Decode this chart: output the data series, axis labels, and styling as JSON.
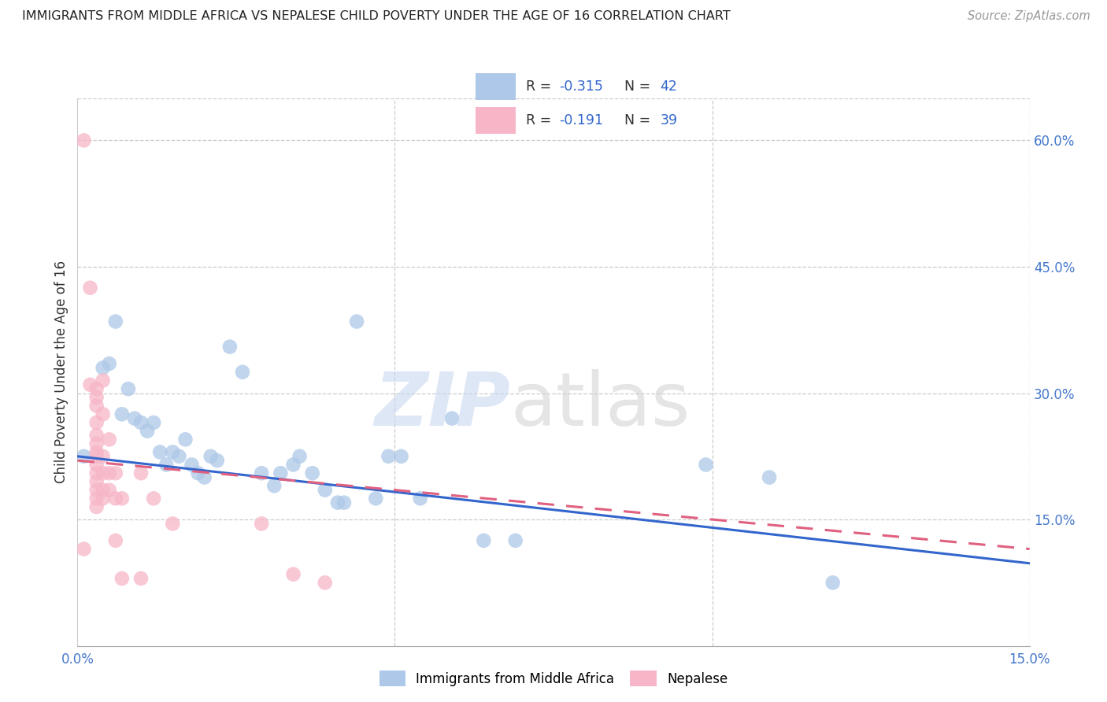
{
  "title": "IMMIGRANTS FROM MIDDLE AFRICA VS NEPALESE CHILD POVERTY UNDER THE AGE OF 16 CORRELATION CHART",
  "source": "Source: ZipAtlas.com",
  "ylabel": "Child Poverty Under the Age of 16",
  "xlim": [
    0.0,
    0.15
  ],
  "ylim": [
    0.0,
    0.65
  ],
  "blue_R": "-0.315",
  "blue_N": "42",
  "pink_R": "-0.191",
  "pink_N": "39",
  "blue_color": "#adc8e8",
  "pink_color": "#f7b6c8",
  "blue_line_color": "#3366cc",
  "pink_line_color": "#e06080",
  "blue_scatter": [
    [
      0.001,
      0.225
    ],
    [
      0.004,
      0.33
    ],
    [
      0.005,
      0.335
    ],
    [
      0.006,
      0.385
    ],
    [
      0.007,
      0.275
    ],
    [
      0.008,
      0.305
    ],
    [
      0.009,
      0.27
    ],
    [
      0.01,
      0.265
    ],
    [
      0.011,
      0.255
    ],
    [
      0.012,
      0.265
    ],
    [
      0.013,
      0.23
    ],
    [
      0.014,
      0.215
    ],
    [
      0.015,
      0.23
    ],
    [
      0.016,
      0.225
    ],
    [
      0.017,
      0.245
    ],
    [
      0.018,
      0.215
    ],
    [
      0.019,
      0.205
    ],
    [
      0.02,
      0.2
    ],
    [
      0.021,
      0.225
    ],
    [
      0.022,
      0.22
    ],
    [
      0.024,
      0.355
    ],
    [
      0.026,
      0.325
    ],
    [
      0.029,
      0.205
    ],
    [
      0.031,
      0.19
    ],
    [
      0.032,
      0.205
    ],
    [
      0.034,
      0.215
    ],
    [
      0.035,
      0.225
    ],
    [
      0.037,
      0.205
    ],
    [
      0.039,
      0.185
    ],
    [
      0.041,
      0.17
    ],
    [
      0.042,
      0.17
    ],
    [
      0.044,
      0.385
    ],
    [
      0.047,
      0.175
    ],
    [
      0.049,
      0.225
    ],
    [
      0.051,
      0.225
    ],
    [
      0.054,
      0.175
    ],
    [
      0.059,
      0.27
    ],
    [
      0.064,
      0.125
    ],
    [
      0.069,
      0.125
    ],
    [
      0.099,
      0.215
    ],
    [
      0.109,
      0.2
    ],
    [
      0.119,
      0.075
    ]
  ],
  "pink_scatter": [
    [
      0.001,
      0.6
    ],
    [
      0.002,
      0.425
    ],
    [
      0.002,
      0.31
    ],
    [
      0.003,
      0.305
    ],
    [
      0.003,
      0.295
    ],
    [
      0.003,
      0.285
    ],
    [
      0.003,
      0.265
    ],
    [
      0.003,
      0.25
    ],
    [
      0.003,
      0.24
    ],
    [
      0.003,
      0.23
    ],
    [
      0.003,
      0.225
    ],
    [
      0.003,
      0.215
    ],
    [
      0.003,
      0.205
    ],
    [
      0.003,
      0.195
    ],
    [
      0.003,
      0.185
    ],
    [
      0.003,
      0.175
    ],
    [
      0.003,
      0.165
    ],
    [
      0.004,
      0.315
    ],
    [
      0.004,
      0.275
    ],
    [
      0.004,
      0.225
    ],
    [
      0.004,
      0.205
    ],
    [
      0.004,
      0.185
    ],
    [
      0.004,
      0.175
    ],
    [
      0.005,
      0.245
    ],
    [
      0.005,
      0.205
    ],
    [
      0.005,
      0.185
    ],
    [
      0.006,
      0.205
    ],
    [
      0.006,
      0.175
    ],
    [
      0.006,
      0.125
    ],
    [
      0.007,
      0.175
    ],
    [
      0.007,
      0.08
    ],
    [
      0.01,
      0.205
    ],
    [
      0.01,
      0.08
    ],
    [
      0.012,
      0.175
    ],
    [
      0.015,
      0.145
    ],
    [
      0.029,
      0.145
    ],
    [
      0.034,
      0.085
    ],
    [
      0.039,
      0.075
    ],
    [
      0.001,
      0.115
    ]
  ],
  "blue_line_x": [
    0.0,
    0.15
  ],
  "blue_line_y": [
    0.225,
    0.098
  ],
  "pink_line_x": [
    0.0,
    0.15
  ],
  "pink_line_y": [
    0.22,
    0.115
  ]
}
